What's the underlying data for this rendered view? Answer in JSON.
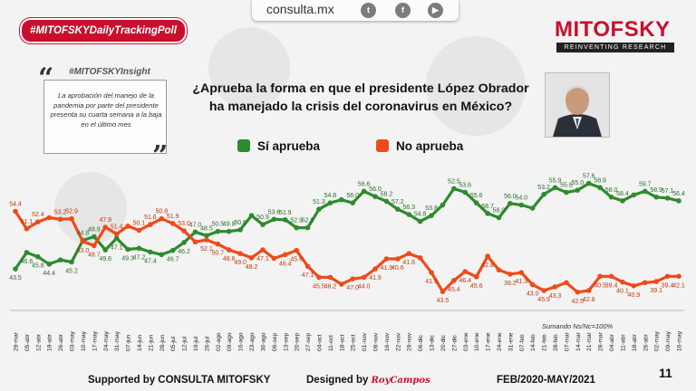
{
  "badge": "#MITOFSKYDailyTrackingPoll",
  "topbar": {
    "site": "consulta.mx"
  },
  "brand": {
    "name": "MITOFSKY",
    "tagline": "REINVENTING RESEARCH"
  },
  "insight": {
    "tag": "#MITOFSKYInsight",
    "text": "La aprobación del manejo de la pandemia por parte del presidente presenta su cuarta semana a la baja en el último mes"
  },
  "question": "¿Aprueba la forma en que el presidente López Obrador ha manejado la crisis del coronavirus en México?",
  "legend": {
    "approve": "Sí aprueba",
    "disapprove": "No aprueba"
  },
  "colors": {
    "approve": "#2e8b2e",
    "disapprove": "#ee4a1a",
    "brand": "#c8102e"
  },
  "chart_data": {
    "type": "line",
    "x": [
      "29-mar",
      "05-abr",
      "12-abr",
      "19-abr",
      "26-abr",
      "03-may",
      "10-may",
      "17-may",
      "24-may",
      "31-may",
      "07-jun",
      "14-jun",
      "21-jun",
      "28-jun",
      "05-jul",
      "12-jul",
      "19-jul",
      "26-jul",
      "02-ago",
      "09-ago",
      "16-ago",
      "23-ago",
      "30-ago",
      "06-sep",
      "13-sep",
      "20-sep",
      "27-sep",
      "04-oct",
      "11-oct",
      "18-oct",
      "25-oct",
      "01-nov",
      "08-nov",
      "16-nov",
      "22-nov",
      "29-nov",
      "06-dic",
      "13-dic",
      "20-dic",
      "27-dic",
      "03-ene",
      "10-ene",
      "17-ene",
      "24-ene",
      "31-ene",
      "07-feb",
      "14-feb",
      "21-feb",
      "28-feb",
      "07-mar",
      "14-mar",
      "21-mar",
      "28-mar",
      "04-abr",
      "11-abr",
      "18-abr",
      "26-abr",
      "02-may",
      "09-may",
      "16-may"
    ],
    "series": [
      {
        "name": "Sí aprueba",
        "values": [
          43.5,
          46.6,
          45.8,
          44.4,
          45.2,
          44.8,
          48.9,
          49.6,
          47.1,
          49.3,
          47.2,
          47.4,
          46.7,
          46.2,
          47.0,
          48.5,
          50.5,
          49.8,
          50.6,
          50.6,
          50.9,
          53.6,
          51.9,
          52.9,
          52.8,
          51.3,
          51.3,
          54.8,
          56.0,
          56.6,
          56.0,
          58.2,
          57.2,
          56.3,
          54.8,
          53.8,
          52.5,
          53.6,
          55.6,
          58.7,
          58.0,
          56.0,
          54.0,
          53.2,
          55.9,
          55.6,
          55.0,
          57.6,
          58.9,
          58.0,
          58.4,
          59.7,
          58.9,
          57.1,
          56.4,
          57.5,
          58.2,
          57.1,
          56.9,
          56.4
        ]
      },
      {
        "name": "No aprueba",
        "values": [
          54.4,
          51.1,
          52.4,
          53.2,
          52.9,
          53.0,
          48.7,
          47.9,
          51.4,
          50.1,
          51.6,
          50.8,
          51.9,
          53.0,
          52.1,
          50.7,
          48.6,
          49.0,
          48.2,
          47.1,
          46.4,
          45.6,
          47.1,
          45.5,
          46.2,
          47.0,
          44.0,
          41.9,
          41.9,
          40.6,
          41.6,
          41.9,
          43.5,
          45.4,
          45.4,
          46.4,
          45.6,
          42.8,
          39.2,
          41.3,
          43.0,
          42.0,
          45.9,
          43.3,
          42.5,
          42.8,
          40.5,
          39.4,
          40.1,
          40.9,
          39.1,
          39.4,
          42.1,
          42.1,
          41.0,
          40.3,
          40.9,
          41.1,
          42.1,
          42.1
        ]
      }
    ],
    "labels_approve": [
      "43.5",
      "46.6",
      "45.8",
      "44.4",
      "45.2",
      "44.8",
      "48.9",
      "49.6",
      "47.1",
      "49.3",
      "47.2",
      "47.4",
      "46.7",
      "46.2",
      "47.0",
      "48.5",
      "50.5",
      "49.8",
      "50.6",
      "50.9",
      "53.6",
      "51.9",
      "52.9",
      "52.8",
      "51.3",
      "54.8",
      "56.0",
      "56.6",
      "56.0",
      "58.2",
      "57.2",
      "56.3",
      "54.8",
      "53.8",
      "52.5",
      "53.6",
      "55.6",
      "58.7",
      "58.0",
      "56.0",
      "54.0",
      "53.2",
      "55.9",
      "55.6",
      "55.0",
      "57.6",
      "58.9",
      "58.0",
      "58.4",
      "59.7",
      "58.9",
      "57.1",
      "56.4"
    ],
    "labels_disapprove": [
      "54.4",
      "51.1",
      "52.4",
      "53.2",
      "52.9",
      "53.0",
      "48.7",
      "47.9",
      "51.4",
      "50.1",
      "51.6",
      "50.8",
      "51.9",
      "53.0",
      "52.1",
      "50.7",
      "48.6",
      "49.0",
      "48.2",
      "47.1",
      "46.4",
      "45.6",
      "47.1",
      "45.5",
      "46.2",
      "47.0",
      "44.0",
      "41.9",
      "41.9",
      "40.6",
      "41.6",
      "41.9",
      "43.5",
      "45.4",
      "46.4",
      "45.6",
      "42.8",
      "39.2",
      "41.3",
      "43.0",
      "45.9",
      "43.3",
      "42.5",
      "42.8",
      "40.5",
      "39.4",
      "40.1",
      "40.9",
      "39.1",
      "39.4",
      "42.1"
    ],
    "note": "Sumando Ns/Nc=100%",
    "period": "FEB/2020-MAY/2021"
  },
  "footer": {
    "supported": "Supported by   CONSULTA   MITOFSKY",
    "designed": "Designed by",
    "designer": "RoyCampos",
    "period": "FEB/2020-MAY/2021",
    "page": "11"
  }
}
